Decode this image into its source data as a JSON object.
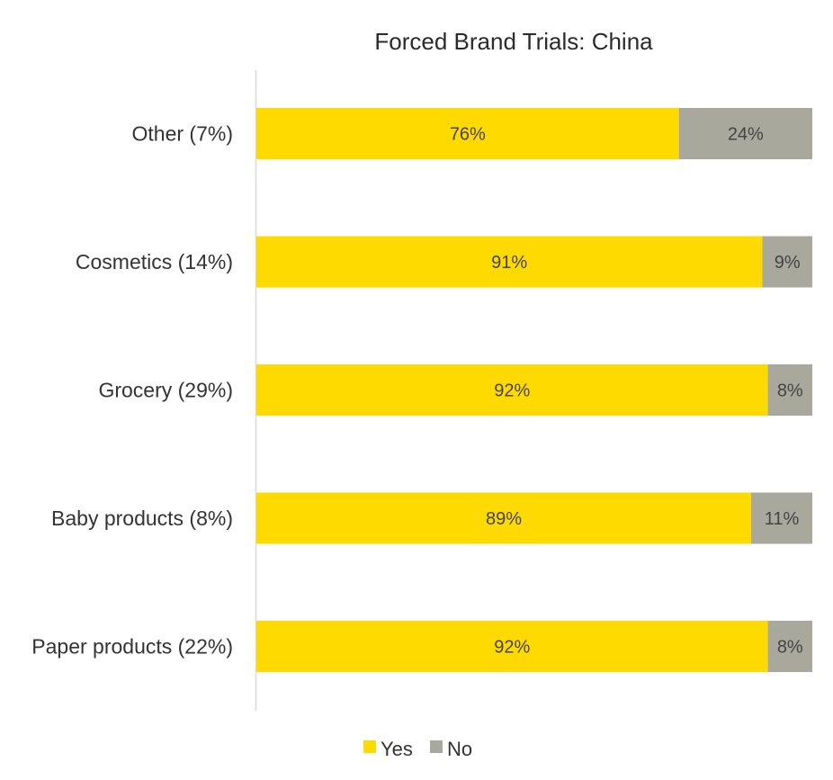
{
  "chart_data": {
    "type": "bar",
    "orientation": "horizontal",
    "stacked": true,
    "percent": true,
    "title": "Forced Brand Trials: China",
    "categories": [
      "Other (7%)",
      "Cosmetics (14%)",
      "Grocery (29%)",
      "Baby products (8%)",
      "Paper products (22%)"
    ],
    "series": [
      {
        "name": "Yes",
        "color": "#FFDA00",
        "values": [
          76,
          91,
          92,
          89,
          92
        ],
        "labels": [
          "76%",
          "91%",
          "92%",
          "89%",
          "92%"
        ]
      },
      {
        "name": "No",
        "color": "#A8A89C",
        "values": [
          24,
          9,
          8,
          11,
          8
        ],
        "labels": [
          "24%",
          "9%",
          "8%",
          "11%",
          "8%"
        ]
      }
    ],
    "xlim": [
      0,
      100
    ],
    "grid": false,
    "legend_position": "bottom"
  }
}
